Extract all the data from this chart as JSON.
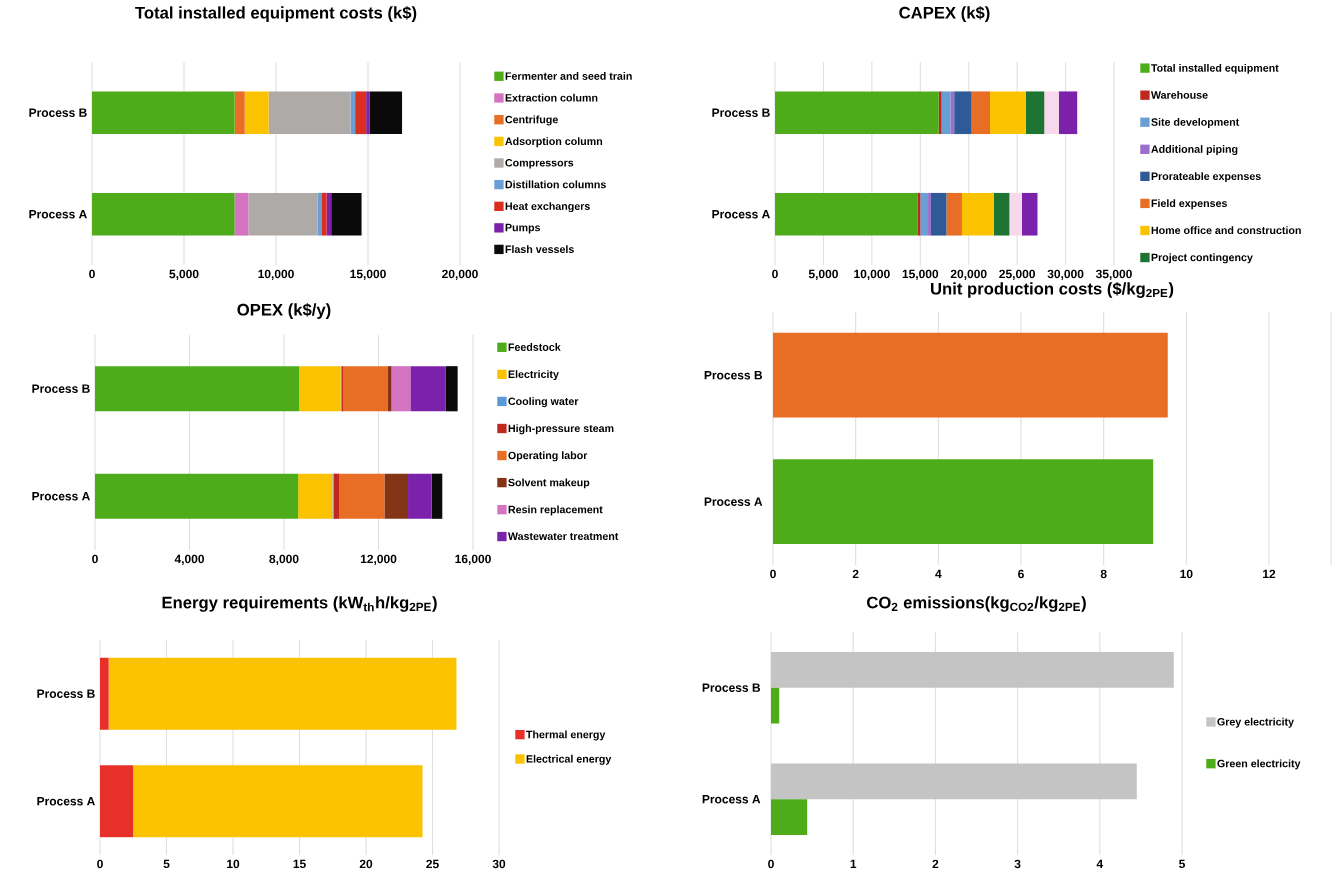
{
  "chart_data": [
    {
      "type": "bar",
      "orientation": "horizontal",
      "stacked": true,
      "title": "Total installed equipment costs (k$)",
      "categories": [
        "Process B",
        "Process A"
      ],
      "grid": "x",
      "legend": "right",
      "xlim": [
        0,
        20000
      ],
      "xticks": [
        0,
        {
          "value": 5000,
          "label": "5,000"
        },
        {
          "value": 10000,
          "label": "10,000"
        },
        {
          "value": 15000,
          "label": "15,000"
        },
        {
          "value": 20000,
          "label": "20,000"
        }
      ],
      "series": [
        {
          "name": "Fermenter and seed train",
          "color": "#4eac1a",
          "values": [
            7750,
            7750
          ]
        },
        {
          "name": "Extraction column",
          "color": "#d474c1",
          "values": [
            0,
            750
          ]
        },
        {
          "name": "Centrifuge",
          "color": "#e86d25",
          "values": [
            550,
            0
          ]
        },
        {
          "name": "Adsorption column",
          "color": "#fbc200",
          "values": [
            1300,
            0
          ]
        },
        {
          "name": "Compressors",
          "color": "#aeaaa8",
          "values": [
            4450,
            3750
          ]
        },
        {
          "name": "Distillation columns",
          "color": "#6a9fd4",
          "values": [
            250,
            250
          ]
        },
        {
          "name": "Heat exchangers",
          "color": "#dc2e1f",
          "values": [
            600,
            250
          ]
        },
        {
          "name": "Pumps",
          "color": "#7c21aa",
          "values": [
            200,
            250
          ]
        },
        {
          "name": "Flash vessels",
          "color": "#0a0a0a",
          "values": [
            1750,
            1650
          ]
        }
      ]
    },
    {
      "type": "bar",
      "orientation": "horizontal",
      "stacked": true,
      "title": "CAPEX (k$)",
      "categories": [
        "Process B",
        "Process A"
      ],
      "grid": "x",
      "legend": "right",
      "xlim": [
        0,
        35000
      ],
      "xticks": [
        0,
        {
          "value": 5000,
          "label": "5,000"
        },
        {
          "value": 10000,
          "label": "10,000"
        },
        {
          "value": 15000,
          "label": "15,000"
        },
        {
          "value": 20000,
          "label": "20,000"
        },
        {
          "value": 25000,
          "label": "25,000"
        },
        {
          "value": 30000,
          "label": "30,000"
        },
        {
          "value": 35000,
          "label": "35,000"
        }
      ],
      "series": [
        {
          "name": "Total installed equipment",
          "color": "#4eac1a",
          "values": [
            16900,
            14700
          ]
        },
        {
          "name": "Warehouse",
          "color": "#c0281f",
          "values": [
            300,
            300
          ]
        },
        {
          "name": "Site development",
          "color": "#6a9fd4",
          "values": [
            900,
            800
          ]
        },
        {
          "name": "Additional  piping",
          "color": "#9c6fcc",
          "values": [
            400,
            300
          ]
        },
        {
          "name": "Prorateable expenses",
          "color": "#2e5b97",
          "values": [
            1800,
            1600
          ]
        },
        {
          "name": "Field expenses",
          "color": "#e86d25",
          "values": [
            1900,
            1600
          ]
        },
        {
          "name": "Home office and construction",
          "color": "#fbc200",
          "values": [
            3700,
            3300
          ]
        },
        {
          "name": "Project contingency",
          "color": "#1e7433",
          "values": [
            1900,
            1600
          ]
        },
        {
          "color": "#f8d8ec",
          "values": [
            1500,
            1300
          ]
        },
        {
          "color": "#7c21aa",
          "values": [
            1900,
            1600
          ]
        }
      ]
    },
    {
      "type": "bar",
      "orientation": "horizontal",
      "stacked": true,
      "title": "OPEX (k$/y)",
      "categories": [
        "Process B",
        "Process A"
      ],
      "grid": "x",
      "legend": "right",
      "xlim": [
        0,
        16000
      ],
      "xticks": [
        0,
        {
          "value": 4000,
          "label": "4,000"
        },
        {
          "value": 8000,
          "label": "8,000"
        },
        {
          "value": 12000,
          "label": "12,000"
        },
        {
          "value": 16000,
          "label": "16,000"
        }
      ],
      "series": [
        {
          "name": "Feedstock",
          "color": "#4eac1a",
          "values": [
            8650,
            8600
          ]
        },
        {
          "name": "Electricity",
          "color": "#fbc200",
          "values": [
            1750,
            1450
          ]
        },
        {
          "name": "Cooling water",
          "color": "#5b9bd5",
          "values": [
            50,
            50
          ]
        },
        {
          "name": "High-pressure steam",
          "color": "#c0281f",
          "values": [
            50,
            250
          ]
        },
        {
          "name": "Operating labor",
          "color": "#e86d25",
          "values": [
            1900,
            1900
          ]
        },
        {
          "name": "Solvent makeup",
          "color": "#833316",
          "values": [
            150,
            1000
          ]
        },
        {
          "name": "Resin replacement",
          "color": "#d474c1",
          "values": [
            800,
            0
          ]
        },
        {
          "name": "Wastewater treatment",
          "color": "#7c21aa",
          "values": [
            1500,
            1000
          ]
        },
        {
          "color": "#0a0a0a",
          "values": [
            500,
            450
          ]
        }
      ]
    },
    {
      "type": "bar",
      "orientation": "horizontal",
      "title": "Unit production costs ($/kg$_{2PE}$)",
      "categories": [
        "Process B",
        "Process A"
      ],
      "grid": "x",
      "xlim": [
        0,
        13.5
      ],
      "xticks": [
        0,
        2,
        4,
        6,
        8,
        10,
        12,
        {
          "value": 13.5,
          "label": null
        }
      ],
      "values": [
        9.55,
        9.2
      ],
      "colors": [
        "#e86d25",
        "#4eac1a"
      ]
    },
    {
      "type": "bar",
      "orientation": "horizontal",
      "stacked": true,
      "title": "Energy requirements (kW$_{th}$h/kg$_{2PE}$)",
      "categories": [
        "Process B",
        "Process A"
      ],
      "grid": "x",
      "legend": "right",
      "xlim": [
        0,
        30
      ],
      "xticks": [
        0,
        5,
        10,
        15,
        20,
        25,
        30
      ],
      "series": [
        {
          "name": "Thermal energy",
          "color": "#e8302a",
          "values": [
            0.65,
            2.5
          ]
        },
        {
          "name": "Electrical energy",
          "color": "#fbc200",
          "values": [
            26.15,
            21.75
          ]
        }
      ]
    },
    {
      "type": "bar",
      "orientation": "horizontal",
      "title": "CO$_{2}$ emissions(kg$_{CO2}$/kg$_{2PE}$)",
      "categories": [
        "Process B",
        "Process A"
      ],
      "grid": "x",
      "legend": "right",
      "xlim": [
        0,
        5
      ],
      "xticks": [
        0,
        1,
        2,
        3,
        4,
        5
      ],
      "series": [
        {
          "name": "Grey electricity",
          "color": "#c4c4c4",
          "values": [
            4.9,
            4.45
          ]
        },
        {
          "name": "Green electricity",
          "color": "#4eac1a",
          "values": [
            0.1,
            0.44
          ]
        }
      ]
    }
  ]
}
